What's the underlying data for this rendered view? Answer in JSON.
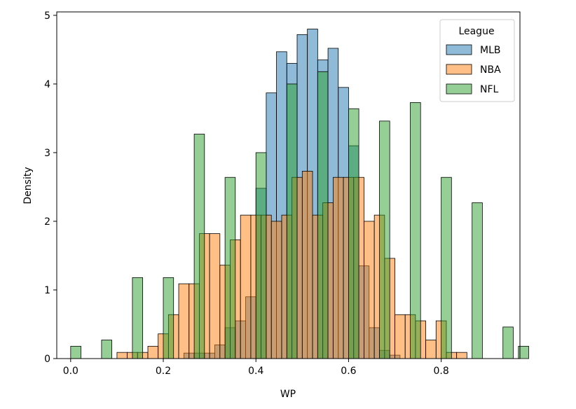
{
  "chart_data": {
    "type": "bar",
    "title": "",
    "xlabel": "WP",
    "ylabel": "Density",
    "xlim": [
      -0.03,
      0.97
    ],
    "ylim": [
      0,
      5.05
    ],
    "xticks": [
      0.0,
      0.2,
      0.4,
      0.6,
      0.8
    ],
    "xtick_labels": [
      "0.0",
      "0.2",
      "0.4",
      "0.6",
      "0.8"
    ],
    "yticks": [
      0,
      1,
      2,
      3,
      4,
      5
    ],
    "ytick_labels": [
      "0",
      "1",
      "2",
      "3",
      "4",
      "5"
    ],
    "grid": false,
    "legend": {
      "title": "League",
      "position": "top-right"
    },
    "bin_width": 0.0222,
    "series": [
      {
        "name": "MLB",
        "color": "#1f77b4",
        "bins": [
          [
            0.2444,
            0.08
          ],
          [
            0.2667,
            0.08
          ],
          [
            0.2889,
            0.08
          ],
          [
            0.3111,
            0.2
          ],
          [
            0.3333,
            0.45
          ],
          [
            0.3556,
            0.55
          ],
          [
            0.3778,
            0.9
          ],
          [
            0.4,
            2.48
          ],
          [
            0.4222,
            3.87
          ],
          [
            0.4444,
            4.47
          ],
          [
            0.4667,
            4.3
          ],
          [
            0.4889,
            4.72
          ],
          [
            0.5111,
            4.8
          ],
          [
            0.5333,
            4.35
          ],
          [
            0.5556,
            4.52
          ],
          [
            0.5778,
            3.95
          ],
          [
            0.6,
            3.1
          ],
          [
            0.6222,
            1.35
          ],
          [
            0.6444,
            0.45
          ],
          [
            0.6667,
            0.12
          ],
          [
            0.6889,
            0.05
          ]
        ]
      },
      {
        "name": "NBA",
        "color": "#ff7f0e",
        "bins": [
          [
            0.1,
            0.09
          ],
          [
            0.1222,
            0.09
          ],
          [
            0.1444,
            0.09
          ],
          [
            0.1667,
            0.18
          ],
          [
            0.1889,
            0.36
          ],
          [
            0.2111,
            0.64
          ],
          [
            0.2333,
            1.09
          ],
          [
            0.2556,
            1.09
          ],
          [
            0.2778,
            1.82
          ],
          [
            0.3,
            1.82
          ],
          [
            0.3222,
            1.36
          ],
          [
            0.3444,
            1.73
          ],
          [
            0.3667,
            2.09
          ],
          [
            0.3889,
            2.09
          ],
          [
            0.4111,
            2.09
          ],
          [
            0.4333,
            2.0
          ],
          [
            0.4556,
            2.09
          ],
          [
            0.4778,
            2.64
          ],
          [
            0.5,
            2.73
          ],
          [
            0.5222,
            2.09
          ],
          [
            0.5444,
            2.27
          ],
          [
            0.5667,
            2.64
          ],
          [
            0.5889,
            2.64
          ],
          [
            0.6111,
            2.64
          ],
          [
            0.6333,
            2.0
          ],
          [
            0.6556,
            2.09
          ],
          [
            0.6778,
            1.46
          ],
          [
            0.7,
            0.64
          ],
          [
            0.7222,
            0.64
          ],
          [
            0.7444,
            0.55
          ],
          [
            0.7667,
            0.27
          ],
          [
            0.7889,
            0.55
          ],
          [
            0.8111,
            0.09
          ],
          [
            0.8333,
            0.09
          ]
        ]
      },
      {
        "name": "NFL",
        "color": "#2ca02c",
        "bins": [
          [
            0.0,
            0.18
          ],
          [
            0.0667,
            0.27
          ],
          [
            0.1333,
            1.18
          ],
          [
            0.2,
            1.18
          ],
          [
            0.2667,
            3.27
          ],
          [
            0.3333,
            2.64
          ],
          [
            0.4,
            3.0
          ],
          [
            0.4667,
            4.0
          ],
          [
            0.5333,
            4.18
          ],
          [
            0.6,
            3.64
          ],
          [
            0.6667,
            3.46
          ],
          [
            0.7333,
            3.73
          ],
          [
            0.8,
            2.64
          ],
          [
            0.8667,
            2.27
          ],
          [
            0.9333,
            0.46
          ],
          [
            0.9667,
            0.18
          ]
        ]
      }
    ]
  }
}
